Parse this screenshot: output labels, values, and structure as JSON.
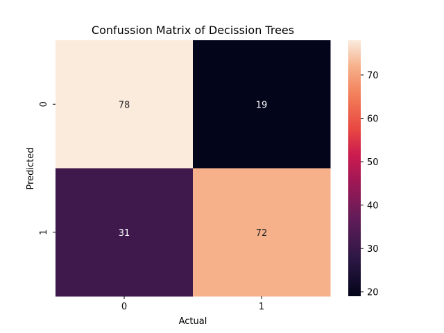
{
  "chart_data": {
    "type": "heatmap",
    "title": "Confussion Matrix of Decission Trees",
    "xlabel": "Actual",
    "ylabel": "Predicted",
    "x_categories": [
      "0",
      "1"
    ],
    "y_categories": [
      "0",
      "1"
    ],
    "values": [
      [
        78,
        19
      ],
      [
        31,
        72
      ]
    ],
    "colormap": "rocket",
    "colorbar": {
      "min": 19,
      "max": 78,
      "ticks": [
        20,
        30,
        40,
        50,
        60,
        70
      ]
    },
    "annot_colors": {
      "light": "#ffffff",
      "dark": "#262626"
    }
  }
}
